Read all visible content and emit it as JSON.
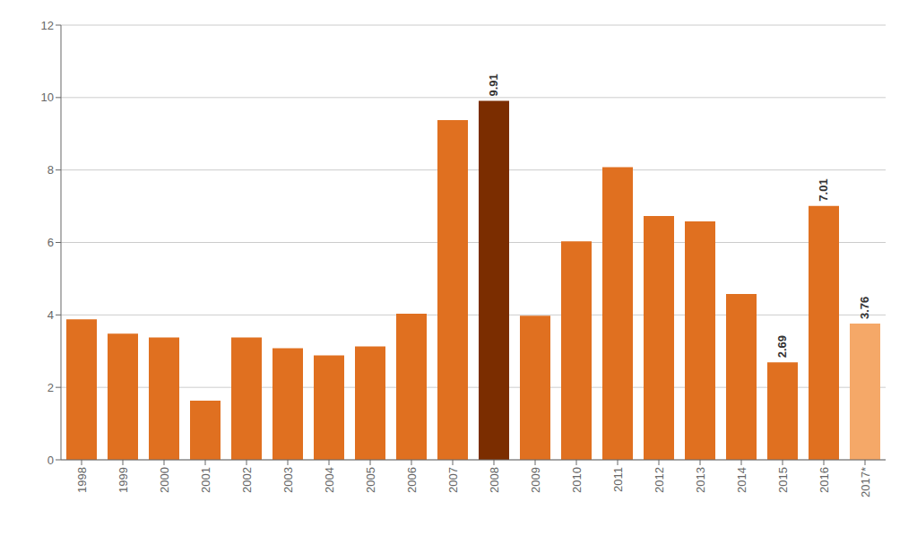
{
  "chart_data": {
    "type": "bar",
    "categories": [
      "1998",
      "1999",
      "2000",
      "2001",
      "2002",
      "2003",
      "2004",
      "2005",
      "2006",
      "2007",
      "2008",
      "2009",
      "2010",
      "2011",
      "2012",
      "2013",
      "2014",
      "2015",
      "2016",
      "2017*"
    ],
    "values": [
      3.88,
      3.48,
      3.38,
      1.63,
      3.38,
      3.08,
      2.88,
      3.13,
      4.03,
      9.38,
      9.91,
      3.98,
      6.03,
      8.08,
      6.73,
      6.58,
      4.58,
      2.69,
      7.01,
      3.76
    ],
    "value_labels": [
      null,
      null,
      null,
      null,
      null,
      null,
      null,
      null,
      null,
      null,
      "9.91",
      null,
      null,
      null,
      null,
      null,
      null,
      "2.69",
      "7.01",
      "3.76"
    ],
    "colors": [
      "#E07020",
      "#E07020",
      "#E07020",
      "#E07020",
      "#E07020",
      "#E07020",
      "#E07020",
      "#E07020",
      "#E07020",
      "#E07020",
      "#7B2D00",
      "#E07020",
      "#E07020",
      "#E07020",
      "#E07020",
      "#E07020",
      "#E07020",
      "#E07020",
      "#E07020",
      "#F5A868"
    ],
    "ylim": [
      0,
      12
    ],
    "yticks": [
      0,
      2,
      4,
      6,
      8,
      10,
      12
    ],
    "grid": true
  }
}
